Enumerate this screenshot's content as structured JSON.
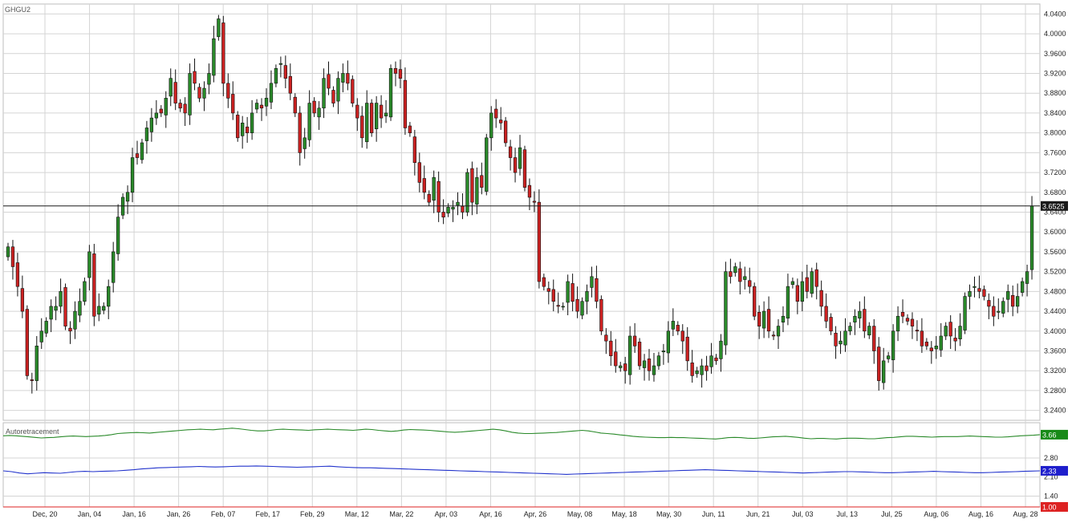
{
  "colors": {
    "up": "#2a8a2a",
    "down": "#cc2222",
    "wick": "#111111",
    "grid": "#d4d4d4",
    "grid_major": "#c6c6c6",
    "line_green": "#2a8a2a",
    "line_blue": "#2233cc",
    "line_red": "#dd2222",
    "badge_last": "#1a1a1a",
    "badge_green": "#188a18",
    "badge_blue": "#1f1fcc",
    "badge_red": "#dd2222"
  },
  "chart_data": [
    {
      "type": "candlestick",
      "title": "GHGU2",
      "ylim": [
        3.22,
        4.06
      ],
      "y_ticks": [
        "4.0400",
        "4.0000",
        "3.9600",
        "3.9200",
        "3.8800",
        "3.8400",
        "3.8000",
        "3.7600",
        "3.7200",
        "3.6800",
        "3.6400",
        "3.6000",
        "3.5600",
        "3.5200",
        "3.4800",
        "3.4400",
        "3.4000",
        "3.3600",
        "3.3200",
        "3.2800",
        "3.2400"
      ],
      "last_price": "3.6525",
      "last_price_value": 3.6525,
      "x_labels": [
        "Dec, 20",
        "Jan, 04",
        "Jan, 16",
        "Jan, 26",
        "Feb, 07",
        "Feb, 17",
        "Feb, 29",
        "Mar, 12",
        "Mar, 22",
        "Apr, 03",
        "Apr, 16",
        "Apr, 26",
        "May, 08",
        "May, 18",
        "May, 30",
        "Jun, 11",
        "Jun, 21",
        "Jul, 03",
        "Jul, 13",
        "Jul, 25",
        "Aug, 06",
        "Aug, 16",
        "Aug, 28"
      ],
      "grid": true,
      "close": [
        3.57,
        3.53,
        3.49,
        3.44,
        3.31,
        3.3,
        3.37,
        3.4,
        3.42,
        3.45,
        3.45,
        3.48,
        3.41,
        3.4,
        3.44,
        3.46,
        3.5,
        3.56,
        3.43,
        3.45,
        3.45,
        3.49,
        3.56,
        3.63,
        3.67,
        3.68,
        3.75,
        3.75,
        3.78,
        3.81,
        3.83,
        3.84,
        3.84,
        3.87,
        3.91,
        3.86,
        3.85,
        3.84,
        3.92,
        3.9,
        3.87,
        3.89,
        3.92,
        3.99,
        4.03,
        3.9,
        3.87,
        3.84,
        3.79,
        3.82,
        3.8,
        3.84,
        3.86,
        3.85,
        3.87,
        3.9,
        3.93,
        3.94,
        3.91,
        3.88,
        3.84,
        3.76,
        3.79,
        3.86,
        3.84,
        3.85,
        3.91,
        3.89,
        3.86,
        3.91,
        3.92,
        3.9,
        3.86,
        3.83,
        3.79,
        3.86,
        3.8,
        3.86,
        3.83,
        3.84,
        3.93,
        3.92,
        3.91,
        3.81,
        3.8,
        3.74,
        3.7,
        3.68,
        3.66,
        3.71,
        3.64,
        3.63,
        3.65,
        3.65,
        3.66,
        3.64,
        3.72,
        3.66,
        3.71,
        3.69,
        3.79,
        3.84,
        3.83,
        3.82,
        3.78,
        3.75,
        3.72,
        3.77,
        3.69,
        3.67,
        3.66,
        3.5,
        3.49,
        3.48,
        3.46,
        3.45,
        3.45,
        3.5,
        3.46,
        3.44,
        3.46,
        3.48,
        3.51,
        3.46,
        3.4,
        3.38,
        3.35,
        3.33,
        3.33,
        3.32,
        3.39,
        3.37,
        3.33,
        3.34,
        3.32,
        3.33,
        3.35,
        3.36,
        3.4,
        3.42,
        3.4,
        3.38,
        3.34,
        3.31,
        3.32,
        3.33,
        3.32,
        3.35,
        3.34,
        3.38,
        3.52,
        3.51,
        3.53,
        3.5,
        3.51,
        3.49,
        3.43,
        3.41,
        3.44,
        3.4,
        3.39,
        3.41,
        3.43,
        3.49,
        3.5,
        3.46,
        3.5,
        3.48,
        3.52,
        3.49,
        3.45,
        3.42,
        3.4,
        3.37,
        3.38,
        3.4,
        3.41,
        3.43,
        3.44,
        3.4,
        3.41,
        3.36,
        3.3,
        3.34,
        3.35,
        3.4,
        3.43,
        3.43,
        3.42,
        3.41,
        3.4,
        3.37,
        3.37,
        3.36,
        3.37,
        3.39,
        3.41,
        3.39,
        3.38,
        3.41,
        3.47,
        3.48,
        3.49,
        3.48,
        3.47,
        3.45,
        3.43,
        3.44,
        3.46,
        3.48,
        3.45,
        3.47,
        3.5,
        3.52,
        3.6525
      ]
    },
    {
      "type": "line",
      "title": "Autoretracement",
      "ylim": [
        1.0,
        4.1
      ],
      "y_ticks": [
        "2.80",
        "2.10",
        "1.40"
      ],
      "series": [
        {
          "color": "#2a8a2a",
          "last": "3.66",
          "values": [
            3.62,
            3.63,
            3.62,
            3.6,
            3.58,
            3.56,
            3.54,
            3.55,
            3.56,
            3.58,
            3.6,
            3.61,
            3.6,
            3.59,
            3.6,
            3.61,
            3.63,
            3.66,
            3.7,
            3.72,
            3.73,
            3.74,
            3.73,
            3.72,
            3.74,
            3.76,
            3.78,
            3.8,
            3.82,
            3.84,
            3.85,
            3.86,
            3.85,
            3.84,
            3.86,
            3.88,
            3.9,
            3.88,
            3.85,
            3.82,
            3.8,
            3.8,
            3.82,
            3.85,
            3.86,
            3.85,
            3.84,
            3.83,
            3.82,
            3.84,
            3.85,
            3.86,
            3.85,
            3.84,
            3.83,
            3.82,
            3.84,
            3.86,
            3.85,
            3.82,
            3.8,
            3.78,
            3.8,
            3.83,
            3.85,
            3.84,
            3.83,
            3.82,
            3.8,
            3.78,
            3.76,
            3.75,
            3.76,
            3.78,
            3.8,
            3.82,
            3.84,
            3.86,
            3.84,
            3.8,
            3.75,
            3.72,
            3.7,
            3.7,
            3.71,
            3.72,
            3.73,
            3.74,
            3.76,
            3.78,
            3.8,
            3.82,
            3.8,
            3.76,
            3.72,
            3.7,
            3.68,
            3.65,
            3.63,
            3.6,
            3.58,
            3.57,
            3.56,
            3.55,
            3.55,
            3.56,
            3.55,
            3.55,
            3.54,
            3.53,
            3.52,
            3.51,
            3.5,
            3.52,
            3.55,
            3.56,
            3.55,
            3.53,
            3.52,
            3.54,
            3.56,
            3.58,
            3.59,
            3.6,
            3.58,
            3.56,
            3.53,
            3.51,
            3.52,
            3.52,
            3.51,
            3.5,
            3.52,
            3.53,
            3.53,
            3.52,
            3.51,
            3.51,
            3.53,
            3.55,
            3.56,
            3.58,
            3.6,
            3.6,
            3.59,
            3.58,
            3.57,
            3.58,
            3.59,
            3.59,
            3.59,
            3.6,
            3.61,
            3.6,
            3.59,
            3.58,
            3.57,
            3.57,
            3.58,
            3.6,
            3.62,
            3.63,
            3.64,
            3.66
          ]
        },
        {
          "color": "#2233cc",
          "last": "2.33",
          "values": [
            2.33,
            2.3,
            2.25,
            2.22,
            2.24,
            2.26,
            2.25,
            2.24,
            2.27,
            2.3,
            2.31,
            2.3,
            2.31,
            2.32,
            2.33,
            2.35,
            2.37,
            2.4,
            2.42,
            2.44,
            2.45,
            2.46,
            2.47,
            2.48,
            2.49,
            2.48,
            2.47,
            2.48,
            2.49,
            2.5,
            2.5,
            2.51,
            2.5,
            2.49,
            2.48,
            2.47,
            2.46,
            2.47,
            2.48,
            2.49,
            2.5,
            2.48,
            2.46,
            2.45,
            2.44,
            2.44,
            2.43,
            2.42,
            2.41,
            2.4,
            2.39,
            2.38,
            2.37,
            2.36,
            2.35,
            2.34,
            2.33,
            2.32,
            2.31,
            2.3,
            2.29,
            2.28,
            2.27,
            2.26,
            2.25,
            2.24,
            2.23,
            2.22,
            2.21,
            2.2,
            2.21,
            2.22,
            2.23,
            2.24,
            2.25,
            2.26,
            2.27,
            2.28,
            2.29,
            2.3,
            2.31,
            2.32,
            2.33,
            2.34,
            2.35,
            2.36,
            2.37,
            2.36,
            2.35,
            2.34,
            2.33,
            2.32,
            2.31,
            2.3,
            2.29,
            2.28,
            2.27,
            2.26,
            2.25,
            2.26,
            2.27,
            2.28,
            2.29,
            2.3,
            2.3,
            2.29,
            2.28,
            2.27,
            2.26,
            2.26,
            2.27,
            2.28,
            2.29,
            2.3,
            2.31,
            2.3,
            2.29,
            2.28,
            2.27,
            2.26,
            2.26,
            2.27,
            2.28,
            2.29,
            2.3,
            2.31,
            2.32,
            2.33
          ]
        },
        {
          "color": "#dd2222",
          "last": "1.00",
          "values": [
            1.0,
            1.0
          ]
        }
      ]
    }
  ]
}
